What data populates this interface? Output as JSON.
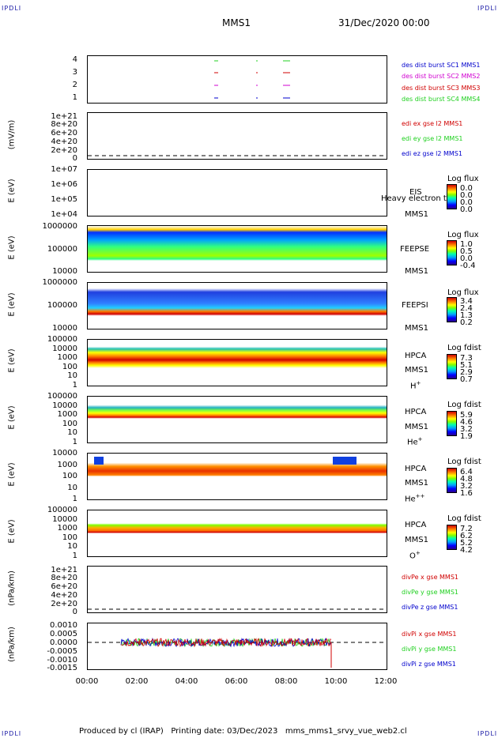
{
  "corners": {
    "top_left": "IPDLI",
    "top_right": "IPDLI",
    "bottom_left": "IPDLI",
    "bottom_right": "IPDLI"
  },
  "header": {
    "mission": "MMS1",
    "datetime": "31/Dec/2020 00:00"
  },
  "footer": {
    "text": "Produced by cl (IRAP)   Printing date: 03/Dec/2023   mms_mms1_srvy_vue_web2.cl"
  },
  "x_axis": {
    "ticks": [
      "00:00",
      "02:00",
      "04:00",
      "06:00",
      "08:00",
      "10:00",
      "12:00"
    ]
  },
  "colors": {
    "red": "#d00000",
    "green": "#20d020",
    "blue": "#0000cc",
    "magenta": "#d000d0",
    "black": "#000000"
  },
  "chart_data": [
    {
      "type": "scatter",
      "name": "des-dist-burst",
      "yticks": [
        "4",
        "3",
        "2",
        "1"
      ],
      "legend": [
        {
          "label": "des dist burst SC1 MMS1",
          "color": "#0000cc"
        },
        {
          "label": "des dist burst SC2 MMS2",
          "color": "#d000d0"
        },
        {
          "label": "des dist burst SC3 MMS3",
          "color": "#d00000"
        },
        {
          "label": "des dist burst SC4 MMS4",
          "color": "#20d020"
        }
      ]
    },
    {
      "type": "line",
      "name": "edi-e-gse",
      "ylabel": "(mV/m)",
      "yticks": [
        "1e+21",
        "8e+20",
        "6e+20",
        "4e+20",
        "2e+20",
        "0"
      ],
      "legend": [
        {
          "label": "edi ex gse l2 MMS1",
          "color": "#d00000"
        },
        {
          "label": "edi ey gse l2 MMS1",
          "color": "#20d020"
        },
        {
          "label": "edi ez gse l2 MMS1",
          "color": "#0000cc"
        }
      ]
    },
    {
      "type": "heatmap",
      "name": "eis",
      "ylabel": "E (eV)",
      "yticks": [
        "1e+07",
        "1e+06",
        "1e+05",
        "1e+04"
      ],
      "labels": [
        "EIS",
        "MMS1"
      ],
      "overlay": "Heavy electron to",
      "colorbar": {
        "title": "Log flux",
        "values": [
          "0.0",
          "0.0",
          "0.0",
          "0.0"
        ]
      }
    },
    {
      "type": "heatmap",
      "name": "feeps-e",
      "ylabel": "E (eV)",
      "yticks": [
        "1000000",
        "100000",
        "10000"
      ],
      "labels": [
        "FEEPSE",
        "MMS1"
      ],
      "colorbar": {
        "title": "Log flux",
        "values": [
          "1.0",
          "0.5",
          "0.0",
          "-0.4"
        ]
      }
    },
    {
      "type": "heatmap",
      "name": "feeps-i",
      "ylabel": "E (eV)",
      "yticks": [
        "1000000",
        "100000",
        "10000"
      ],
      "labels": [
        "FEEPSI",
        "MMS1"
      ],
      "colorbar": {
        "title": "Log flux",
        "values": [
          "3.4",
          "2.4",
          "1.3",
          "0.2"
        ]
      }
    },
    {
      "type": "heatmap",
      "name": "hpca-h",
      "ylabel": "E (eV)",
      "yticks": [
        "100000",
        "10000",
        "1000",
        "100",
        "10",
        "1"
      ],
      "labels": [
        "HPCA",
        "MMS1"
      ],
      "species": "H",
      "charge": "+",
      "colorbar": {
        "title": "Log fdist",
        "values": [
          "7.3",
          "5.1",
          "2.9",
          "0.7"
        ]
      }
    },
    {
      "type": "heatmap",
      "name": "hpca-he",
      "ylabel": "E (eV)",
      "yticks": [
        "100000",
        "10000",
        "1000",
        "100",
        "10",
        "1"
      ],
      "labels": [
        "HPCA",
        "MMS1"
      ],
      "species": "He",
      "charge": "+",
      "colorbar": {
        "title": "Log fdist",
        "values": [
          "5.9",
          "4.6",
          "3.2",
          "1.9"
        ]
      }
    },
    {
      "type": "heatmap",
      "name": "hpca-he2",
      "ylabel": "E (eV)",
      "yticks": [
        "10000",
        "1000",
        "100",
        "10",
        "1"
      ],
      "labels": [
        "HPCA",
        "MMS1"
      ],
      "species": "He",
      "charge": "++",
      "colorbar": {
        "title": "Log fdist",
        "values": [
          "6.4",
          "4.8",
          "3.2",
          "1.6"
        ]
      }
    },
    {
      "type": "heatmap",
      "name": "hpca-o",
      "ylabel": "E (eV)",
      "yticks": [
        "100000",
        "10000",
        "1000",
        "100",
        "10",
        "1"
      ],
      "labels": [
        "HPCA",
        "MMS1"
      ],
      "species": "O",
      "charge": "+",
      "colorbar": {
        "title": "Log fdist",
        "values": [
          "7.2",
          "6.2",
          "5.2",
          "4.2"
        ]
      }
    },
    {
      "type": "line",
      "name": "divpe",
      "ylabel": "(nPa/km)",
      "yticks": [
        "1e+21",
        "8e+20",
        "6e+20",
        "4e+20",
        "2e+20",
        "0"
      ],
      "legend": [
        {
          "label": "divPe x gse MMS1",
          "color": "#d00000"
        },
        {
          "label": "divPe y gse MMS1",
          "color": "#20d020"
        },
        {
          "label": "divPe z gse MMS1",
          "color": "#0000cc"
        }
      ]
    },
    {
      "type": "line",
      "name": "divpi",
      "ylabel": "(nPa/km)",
      "yticks": [
        "0.0010",
        "0.0005",
        "0.0000",
        "-0.0005",
        "-0.0010",
        "-0.0015"
      ],
      "ylim": [
        -0.0017,
        0.0012
      ],
      "legend": [
        {
          "label": "divPi x gse MMS1",
          "color": "#d00000"
        },
        {
          "label": "divPi y gse MMS1",
          "color": "#20d020"
        },
        {
          "label": "divPi z gse MMS1",
          "color": "#0000cc"
        }
      ]
    }
  ]
}
